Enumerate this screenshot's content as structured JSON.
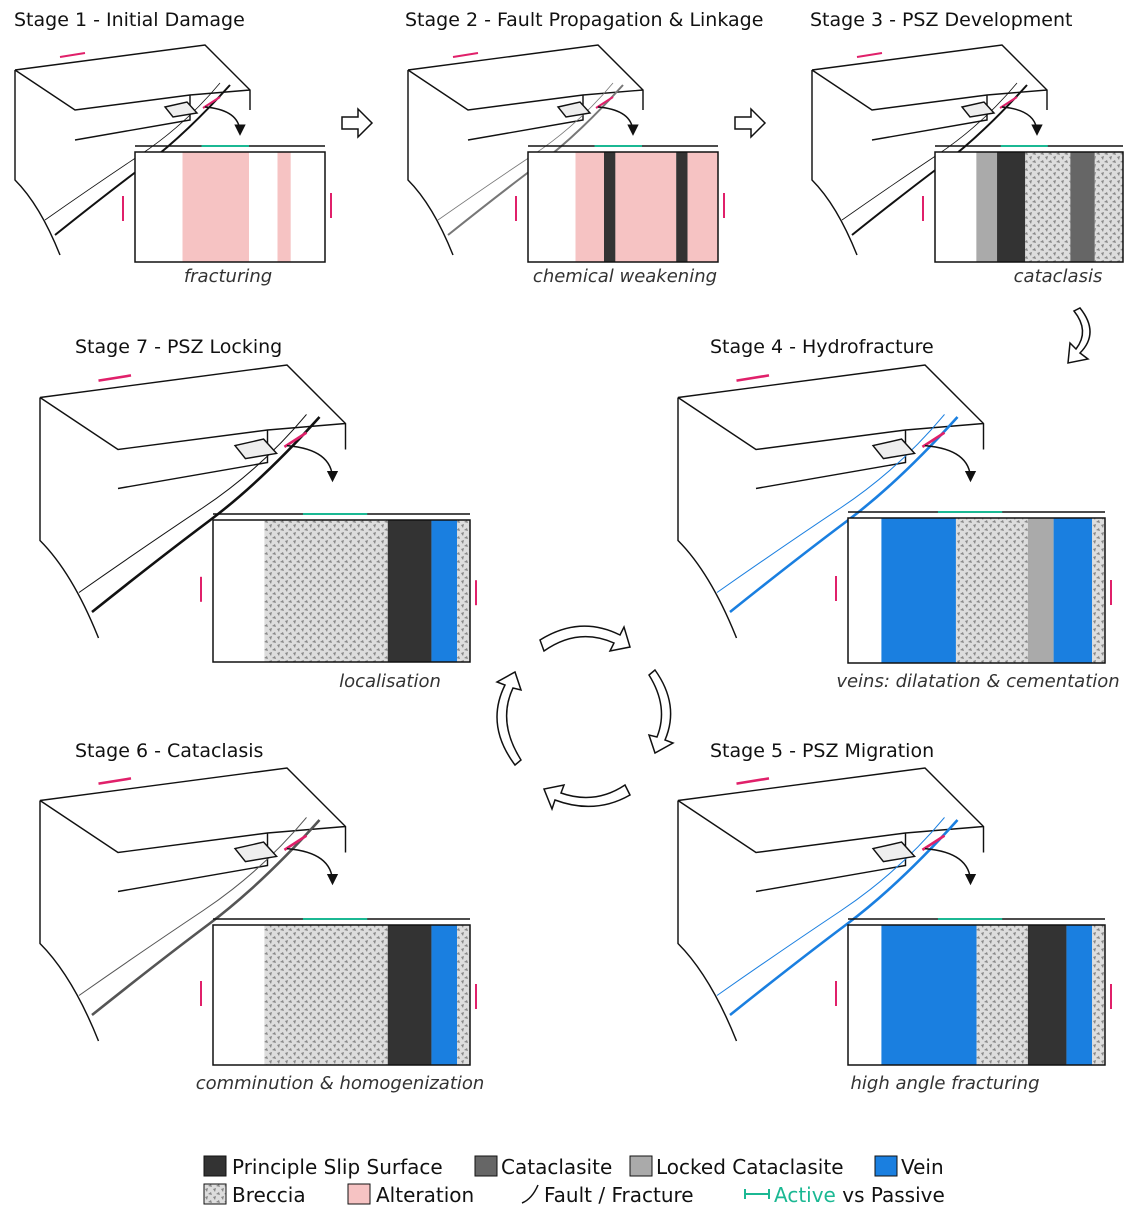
{
  "stages": [
    {
      "title": "Stage 1 - Initial Damage",
      "caption": "fracturing"
    },
    {
      "title": "Stage 2 - Fault Propagation & Linkage",
      "caption": "chemical weakening"
    },
    {
      "title": "Stage 3 - PSZ Development",
      "caption": "cataclasis"
    },
    {
      "title": "Stage 4 - Hydrofracture",
      "caption": "veins: dilatation & cementation"
    },
    {
      "title": "Stage 5 - PSZ Migration",
      "caption": "high angle fracturing"
    },
    {
      "title": "Stage 6 - Cataclasis",
      "caption": "comminution & homogenization"
    },
    {
      "title": "Stage 7 - PSZ Locking",
      "caption": "localisation"
    }
  ],
  "legend": {
    "items": [
      "Principle Slip Surface",
      "Cataclasite",
      "Locked Cataclasite",
      "Vein",
      "Breccia",
      "Alteration",
      "Fault / Fracture"
    ],
    "active": "Active",
    "passive": "vs Passive"
  }
}
